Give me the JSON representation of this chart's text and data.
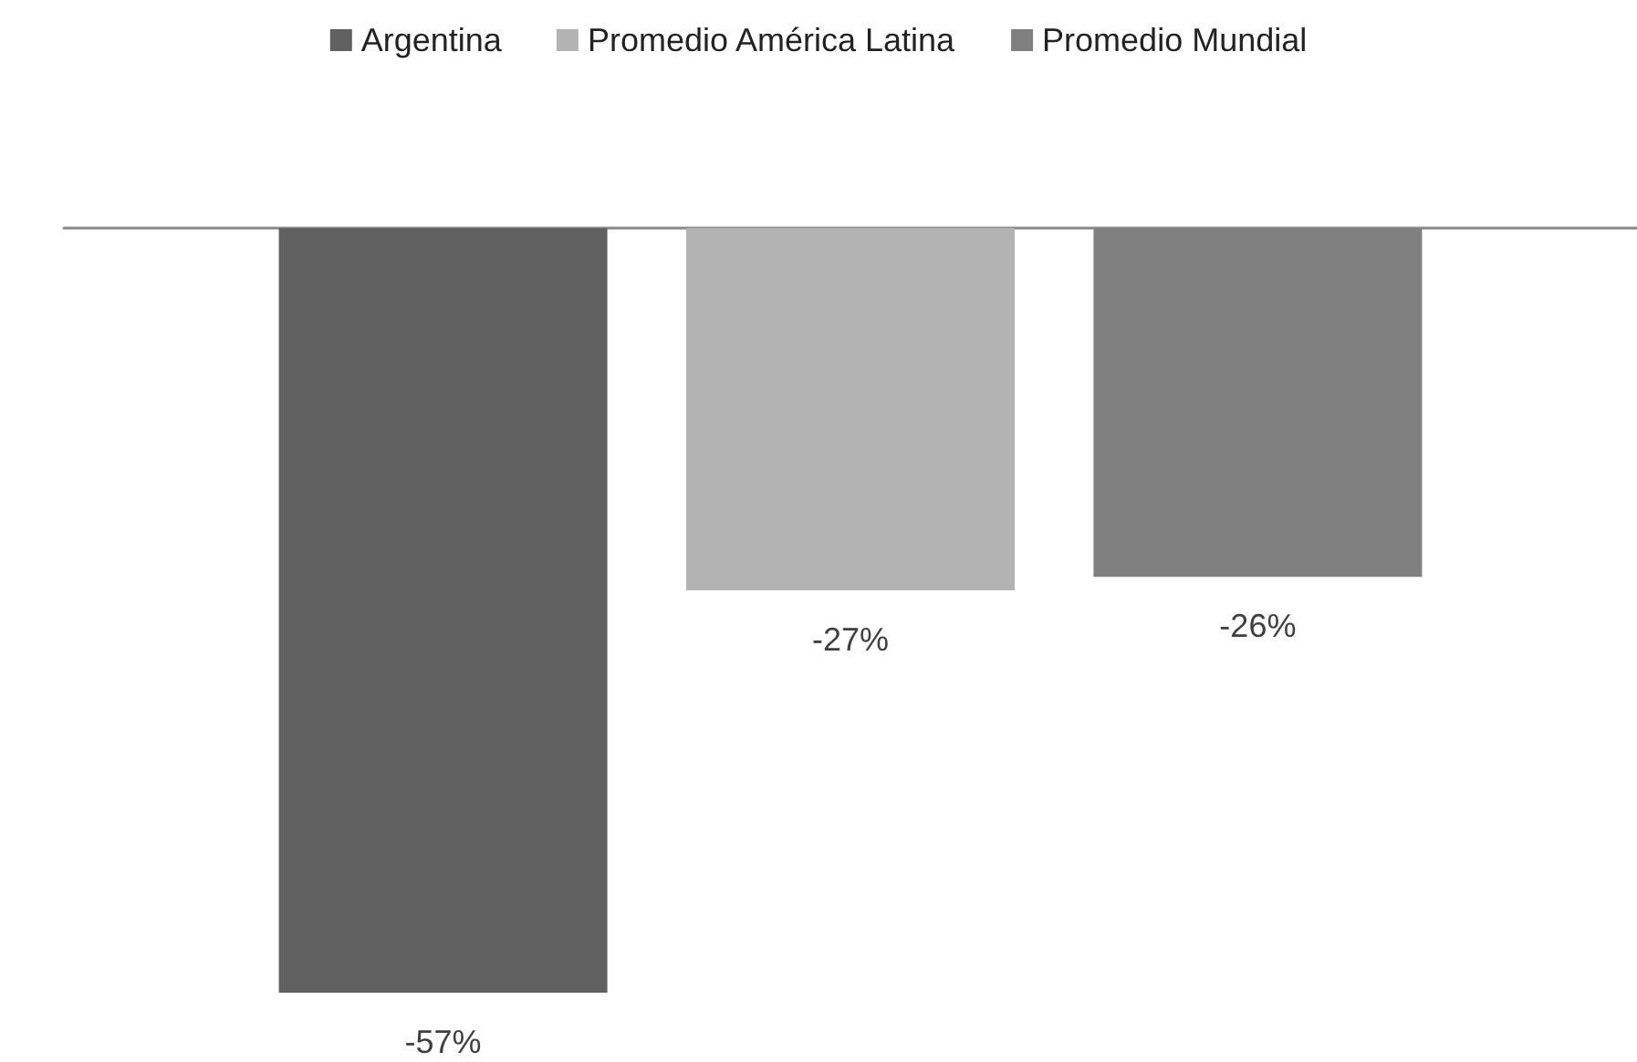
{
  "chart_data": {
    "type": "bar",
    "categories": [
      null
    ],
    "series": [
      {
        "name": "Argentina",
        "color": "#606060",
        "values": [
          -57
        ],
        "value_labels": [
          "-57%"
        ]
      },
      {
        "name": "Promedio América Latina",
        "color": "#b3b3b3",
        "values": [
          -27
        ],
        "value_labels": [
          "-27%"
        ]
      },
      {
        "name": "Promedio Mundial",
        "color": "#808080",
        "values": [
          -26
        ],
        "value_labels": [
          "-26%"
        ]
      }
    ],
    "grid": false,
    "legend": "top"
  }
}
